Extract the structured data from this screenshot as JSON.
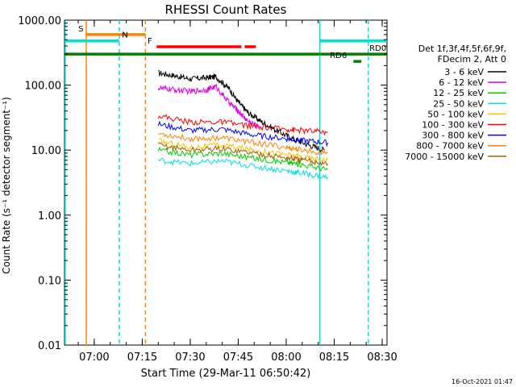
{
  "chart_data": {
    "type": "line",
    "title": "RHESSI Count Rates",
    "xlabel": "Start Time (29-Mar-11 06:50:42)",
    "ylabel": "Count Rate (s⁻¹ detector segment⁻¹)",
    "y_scale": "log",
    "ylim": [
      0.01,
      1000
    ],
    "y_ticks": [
      "1000.00",
      "100.00",
      "10.00",
      "1.00",
      "0.10",
      "0.01"
    ],
    "xlim": [
      "06:50:42",
      "08:31:30"
    ],
    "x_ticks": [
      "07:00",
      "07:15",
      "07:30",
      "07:45",
      "08:00",
      "08:15",
      "08:30"
    ],
    "grid": false,
    "legend_position": "right",
    "legend_header": [
      "Det 1f,3f,4f,5f,6f,9f,",
      "FDecim 2, Att 0"
    ],
    "series": [
      {
        "name": "3 - 6 keV",
        "color": "#000000",
        "x": [
          "07:20",
          "07:25",
          "07:30",
          "07:35",
          "07:38",
          "07:42",
          "07:45",
          "07:48",
          "07:52",
          "07:57",
          "08:02",
          "08:07",
          "08:12"
        ],
        "values": [
          155,
          140,
          125,
          130,
          135,
          90,
          55,
          38,
          28,
          20,
          15,
          12,
          10
        ]
      },
      {
        "name": "6 - 12 keV",
        "color": "#e000e0",
        "x": [
          "07:20",
          "07:25",
          "07:30",
          "07:35",
          "07:38",
          "07:42",
          "07:45",
          "07:48",
          "07:52"
        ],
        "values": [
          90,
          85,
          80,
          85,
          95,
          55,
          40,
          28,
          22
        ]
      },
      {
        "name": "12 - 25 keV",
        "color": "#00cc00",
        "x": [
          "07:20",
          "07:30",
          "07:40",
          "07:50",
          "08:00",
          "08:05",
          "08:13"
        ],
        "values": [
          10,
          8.5,
          9,
          7.5,
          6.5,
          6,
          5
        ]
      },
      {
        "name": "25 - 50 keV",
        "color": "#00e0e0",
        "x": [
          "07:20",
          "07:30",
          "07:40",
          "07:50",
          "08:00",
          "08:05",
          "08:13"
        ],
        "values": [
          7,
          6.2,
          6.8,
          5.6,
          4.8,
          4.4,
          3.8
        ]
      },
      {
        "name": "50 - 100 keV",
        "color": "#ffc000",
        "x": [
          "07:20",
          "07:30",
          "07:40",
          "07:50",
          "08:00",
          "08:05",
          "08:13"
        ],
        "values": [
          14,
          11,
          12,
          10,
          8.6,
          7.8,
          7
        ]
      },
      {
        "name": "100 - 300 keV",
        "color": "#ff0000",
        "x": [
          "07:20",
          "07:30",
          "07:40",
          "07:50",
          "08:00",
          "08:05",
          "08:13"
        ],
        "values": [
          34,
          27,
          27,
          23,
          21,
          20,
          19
        ]
      },
      {
        "name": "300 - 800 keV",
        "color": "#0000ff",
        "x": [
          "07:20",
          "07:30",
          "07:40",
          "07:50",
          "08:00",
          "08:05",
          "08:13"
        ],
        "values": [
          25,
          20,
          21,
          17,
          15,
          14,
          13
        ]
      },
      {
        "name": "800 - 7000 keV",
        "color": "#ff8000",
        "x": [
          "07:20",
          "07:30",
          "07:40",
          "07:50",
          "08:00",
          "08:05",
          "08:13"
        ],
        "values": [
          18,
          15,
          15.5,
          13,
          11,
          10,
          9
        ]
      },
      {
        "name": "7000 - 15000 keV",
        "color": "#a06000",
        "x": [
          "07:20",
          "07:30",
          "07:40",
          "07:50",
          "08:00",
          "08:05",
          "08:13"
        ],
        "values": [
          12,
          10,
          10.5,
          9,
          7.6,
          7,
          6.2
        ]
      }
    ],
    "vlines": [
      {
        "time": "06:50:55",
        "color": "#00e0e0",
        "style": "solid"
      },
      {
        "time": "06:57:30",
        "color": "#ff8000",
        "style": "solid"
      },
      {
        "time": "07:07:50",
        "color": "#00e0e0",
        "style": "dashed"
      },
      {
        "time": "07:16:00",
        "color": "#ff8000",
        "style": "dashed"
      },
      {
        "time": "08:10:30",
        "color": "#00e0e0",
        "style": "solid"
      },
      {
        "time": "08:25:40",
        "color": "#00e0e0",
        "style": "dashed"
      }
    ],
    "flag_bars": [
      {
        "label": "S",
        "color": "#ff8000",
        "start": "06:57:30",
        "end": "07:16:00",
        "label_time": "06:55:00",
        "y": 600
      },
      {
        "label": "N",
        "color": "#00e0e0",
        "start": "06:50:55",
        "end": "07:07:50",
        "label_time": "07:08:40",
        "y": 480
      },
      {
        "label": "",
        "color": "#00e0e0",
        "start": "08:10:30",
        "end": "08:31:30",
        "label_time": "",
        "y": 480
      },
      {
        "label": "F",
        "color": "#ff0000",
        "start": "07:19:30",
        "end": "07:46:00",
        "label_time": "07:16:40",
        "y": 390
      },
      {
        "label": "",
        "color": "#ff0000",
        "start": "07:47:00",
        "end": "07:50:30",
        "label_time": "",
        "y": 390
      },
      {
        "label": "RD0",
        "color": "#008000",
        "start": "06:50:42",
        "end": "08:31:30",
        "label_time": "08:26:00",
        "y": 300
      },
      {
        "label": "RD6",
        "color": "#008000",
        "start": "08:21:00",
        "end": "08:23:30",
        "label_time": "08:13:40",
        "y": 232
      }
    ]
  },
  "footer": {
    "timestamp": "16-Oct-2021 01:47"
  }
}
